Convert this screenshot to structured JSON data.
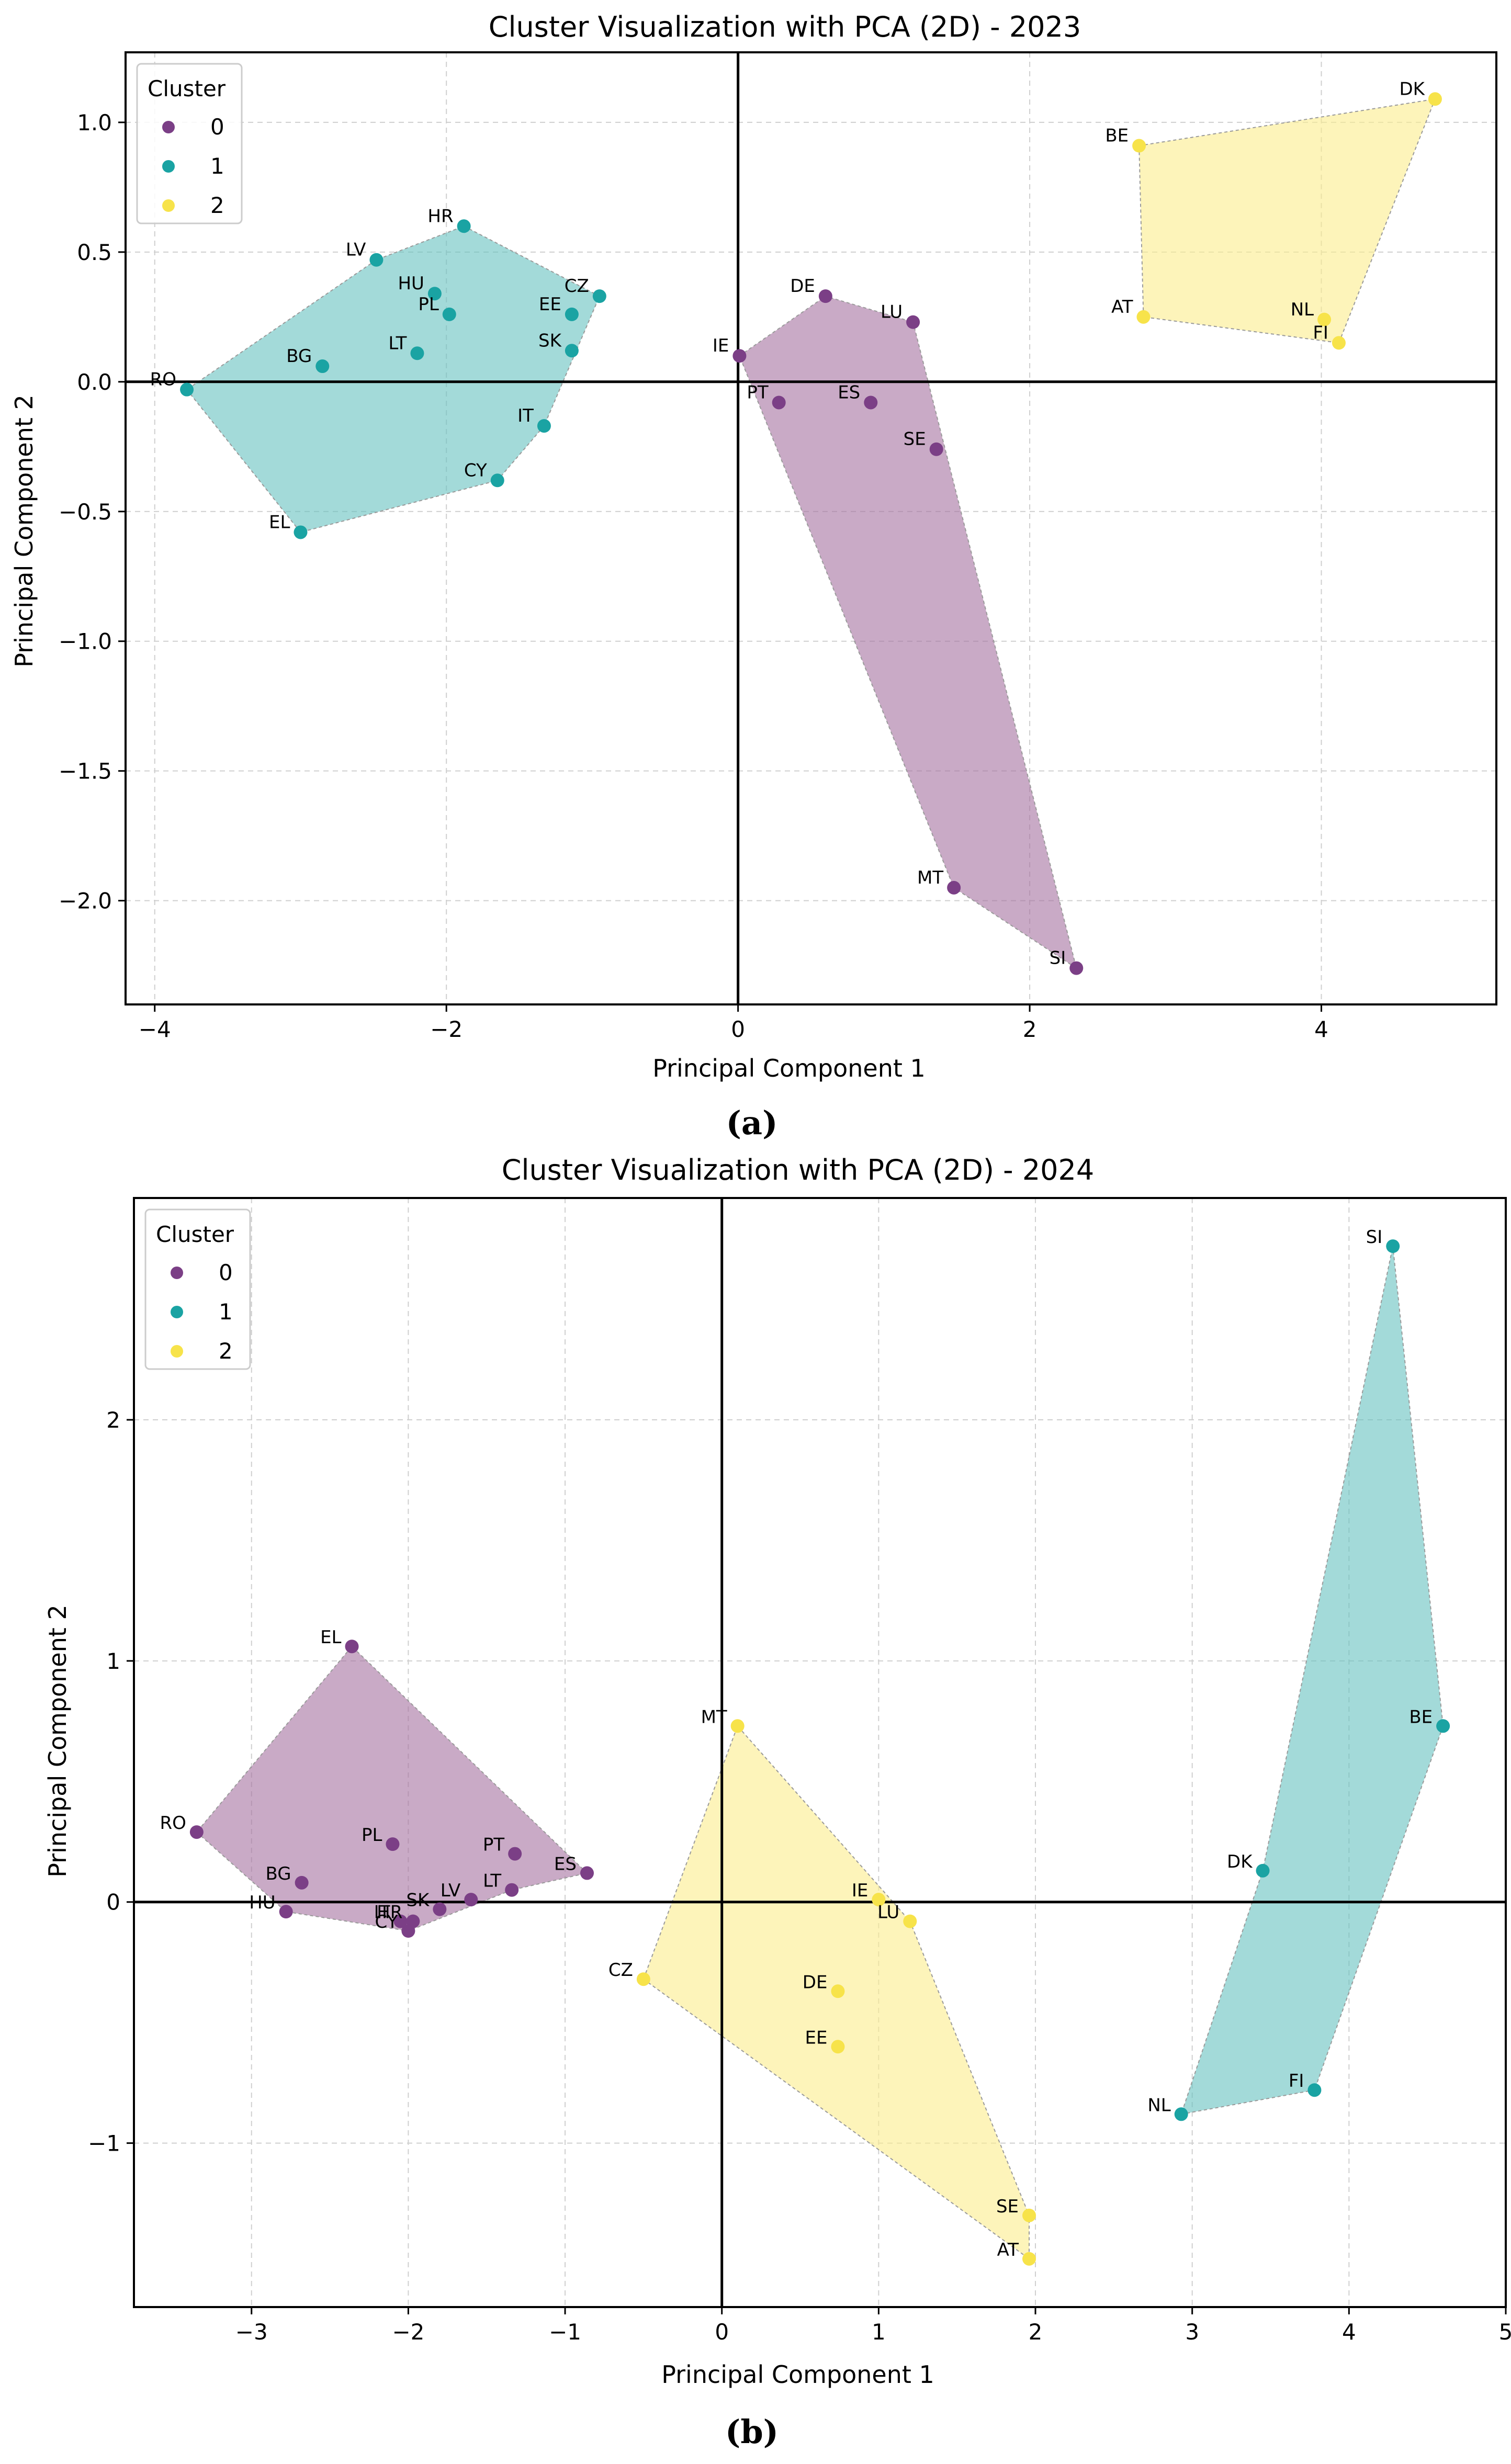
{
  "chart_data": [
    {
      "type": "scatter",
      "title": "Cluster Visualization with PCA (2D) - 2023",
      "xlabel": "Principal Component 1",
      "ylabel": "Principal Component 2",
      "xlim": [
        -4.2,
        5.2
      ],
      "ylim": [
        -2.4,
        1.27
      ],
      "xticks": [
        -4,
        -2,
        0,
        2,
        4
      ],
      "xtick_labels": [
        "−4",
        "−2",
        "0",
        "2",
        "4"
      ],
      "yticks": [
        -2.0,
        -1.5,
        -1.0,
        -0.5,
        0.0,
        0.5,
        1.0
      ],
      "ytick_labels": [
        "−2.0",
        "−1.5",
        "−1.0",
        "−0.5",
        "0.0",
        "0.5",
        "1.0"
      ],
      "grid": true,
      "legend": {
        "title": "Cluster",
        "position": "top-left",
        "entries": [
          "0",
          "1",
          "2"
        ]
      },
      "caption": "(a)",
      "hulls": [
        {
          "cluster": 1,
          "vertices": [
            "RO",
            "EL",
            "CY",
            "IT",
            "CZ",
            "HR",
            "LV"
          ]
        },
        {
          "cluster": 0,
          "vertices": [
            "IE",
            "DE",
            "LU",
            "SI",
            "MT"
          ]
        },
        {
          "cluster": 2,
          "vertices": [
            "BE",
            "DK",
            "FI",
            "AT"
          ]
        }
      ],
      "points": [
        {
          "label": "RO",
          "x": -3.78,
          "y": -0.03,
          "cluster": 1
        },
        {
          "label": "EL",
          "x": -3.0,
          "y": -0.58,
          "cluster": 1
        },
        {
          "label": "BG",
          "x": -2.85,
          "y": 0.06,
          "cluster": 1
        },
        {
          "label": "LV",
          "x": -2.48,
          "y": 0.47,
          "cluster": 1
        },
        {
          "label": "LT",
          "x": -2.2,
          "y": 0.11,
          "cluster": 1
        },
        {
          "label": "HU",
          "x": -2.08,
          "y": 0.34,
          "cluster": 1
        },
        {
          "label": "PL",
          "x": -1.98,
          "y": 0.26,
          "cluster": 1
        },
        {
          "label": "HR",
          "x": -1.88,
          "y": 0.6,
          "cluster": 1
        },
        {
          "label": "CY",
          "x": -1.65,
          "y": -0.38,
          "cluster": 1
        },
        {
          "label": "IT",
          "x": -1.33,
          "y": -0.17,
          "cluster": 1
        },
        {
          "label": "EE",
          "x": -1.14,
          "y": 0.26,
          "cluster": 1
        },
        {
          "label": "SK",
          "x": -1.14,
          "y": 0.12,
          "cluster": 1
        },
        {
          "label": "CZ",
          "x": -0.95,
          "y": 0.33,
          "cluster": 1
        },
        {
          "label": "IE",
          "x": 0.01,
          "y": 0.1,
          "cluster": 0
        },
        {
          "label": "PT",
          "x": 0.28,
          "y": -0.08,
          "cluster": 0
        },
        {
          "label": "DE",
          "x": 0.6,
          "y": 0.33,
          "cluster": 0
        },
        {
          "label": "ES",
          "x": 0.91,
          "y": -0.08,
          "cluster": 0
        },
        {
          "label": "LU",
          "x": 1.2,
          "y": 0.23,
          "cluster": 0
        },
        {
          "label": "SE",
          "x": 1.36,
          "y": -0.26,
          "cluster": 0
        },
        {
          "label": "MT",
          "x": 1.48,
          "y": -1.95,
          "cluster": 0
        },
        {
          "label": "SI",
          "x": 2.32,
          "y": -2.26,
          "cluster": 0
        },
        {
          "label": "BE",
          "x": 2.75,
          "y": 0.91,
          "cluster": 2
        },
        {
          "label": "AT",
          "x": 2.78,
          "y": 0.25,
          "cluster": 2
        },
        {
          "label": "NL",
          "x": 4.02,
          "y": 0.24,
          "cluster": 2
        },
        {
          "label": "FI",
          "x": 4.12,
          "y": 0.15,
          "cluster": 2
        },
        {
          "label": "DK",
          "x": 4.78,
          "y": 1.09,
          "cluster": 2
        }
      ]
    },
    {
      "type": "scatter",
      "title": "Cluster Visualization with PCA (2D) - 2024",
      "xlabel": "Principal Component 1",
      "ylabel": "Principal Component 2",
      "xlim": [
        -3.75,
        5.0
      ],
      "ylim": [
        -1.68,
        2.92
      ],
      "xticks": [
        -3,
        -2,
        -1,
        0,
        1,
        2,
        3,
        4,
        5
      ],
      "xtick_labels": [
        "−3",
        "−2",
        "−1",
        "0",
        "1",
        "2",
        "3",
        "4",
        "5"
      ],
      "yticks": [
        -1,
        0,
        1,
        2
      ],
      "ytick_labels": [
        "−1",
        "0",
        "1",
        "2"
      ],
      "grid": true,
      "legend": {
        "title": "Cluster",
        "position": "top-left",
        "entries": [
          "0",
          "1",
          "2"
        ]
      },
      "caption": "(b)",
      "hulls": [
        {
          "cluster": 0,
          "vertices": [
            "RO",
            "HU",
            "CY",
            "LT",
            "ES",
            "EL"
          ]
        },
        {
          "cluster": 2,
          "vertices": [
            "CZ",
            "AT",
            "SE",
            "LU",
            "MT"
          ]
        },
        {
          "cluster": 1,
          "vertices": [
            "NL",
            "FI",
            "BE",
            "SI",
            "DK"
          ]
        }
      ],
      "points": [
        {
          "label": "RO",
          "x": -3.35,
          "y": 0.29,
          "cluster": 0
        },
        {
          "label": "HU",
          "x": -2.78,
          "y": -0.04,
          "cluster": 0
        },
        {
          "label": "BG",
          "x": -2.68,
          "y": 0.08,
          "cluster": 0
        },
        {
          "label": "EL",
          "x": -2.36,
          "y": 1.06,
          "cluster": 0
        },
        {
          "label": "PL",
          "x": -2.1,
          "y": 0.24,
          "cluster": 0
        },
        {
          "label": "IT",
          "x": -2.05,
          "y": -0.08,
          "cluster": 0
        },
        {
          "label": "HR",
          "x": -1.97,
          "y": -0.08,
          "cluster": 0
        },
        {
          "label": "CY",
          "x": -2.0,
          "y": -0.12,
          "cluster": 0
        },
        {
          "label": "SK",
          "x": -1.8,
          "y": -0.03,
          "cluster": 0
        },
        {
          "label": "LV",
          "x": -1.6,
          "y": 0.01,
          "cluster": 0
        },
        {
          "label": "LT",
          "x": -1.34,
          "y": 0.05,
          "cluster": 0
        },
        {
          "label": "PT",
          "x": -1.32,
          "y": 0.2,
          "cluster": 0
        },
        {
          "label": "ES",
          "x": -0.86,
          "y": 0.12,
          "cluster": 0
        },
        {
          "label": "CZ",
          "x": -0.5,
          "y": -0.32,
          "cluster": 2
        },
        {
          "label": "MT",
          "x": 0.1,
          "y": 0.73,
          "cluster": 2
        },
        {
          "label": "DE",
          "x": 0.74,
          "y": -0.37,
          "cluster": 2
        },
        {
          "label": "EE",
          "x": 0.74,
          "y": -0.6,
          "cluster": 2
        },
        {
          "label": "IE",
          "x": 1.0,
          "y": 0.01,
          "cluster": 2
        },
        {
          "label": "LU",
          "x": 1.2,
          "y": -0.08,
          "cluster": 2
        },
        {
          "label": "SE",
          "x": 1.96,
          "y": -1.3,
          "cluster": 2
        },
        {
          "label": "AT",
          "x": 1.96,
          "y": -1.48,
          "cluster": 2
        },
        {
          "label": "NL",
          "x": 2.93,
          "y": -0.88,
          "cluster": 1
        },
        {
          "label": "DK",
          "x": 3.45,
          "y": 0.13,
          "cluster": 1
        },
        {
          "label": "FI",
          "x": 3.78,
          "y": -0.78,
          "cluster": 1
        },
        {
          "label": "SI",
          "x": 4.28,
          "y": 2.72,
          "cluster": 1
        },
        {
          "label": "BE",
          "x": 4.6,
          "y": 0.73,
          "cluster": 1
        }
      ]
    }
  ],
  "colors": {
    "cluster_0": "#7b3f86",
    "cluster_1": "#1aa3a3",
    "cluster_2": "#f7e34a",
    "hull_0": "#a571a0",
    "hull_1": "#66c2c0",
    "hull_2": "#fbec8c",
    "grid": "#cfcfcf",
    "axes": "#000000"
  }
}
